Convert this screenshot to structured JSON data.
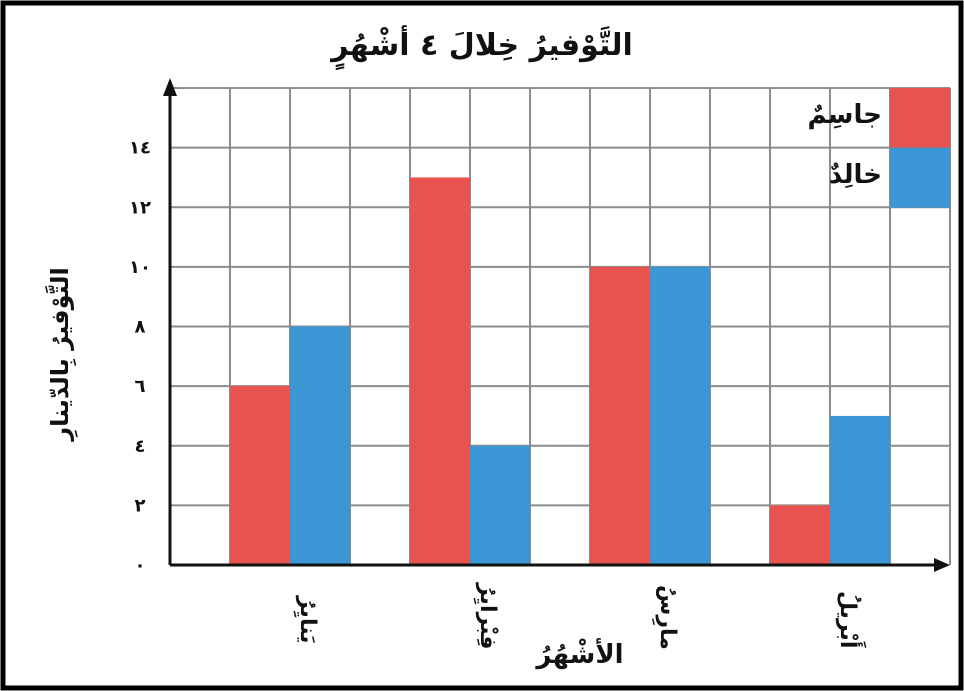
{
  "chart_data": {
    "type": "bar",
    "title": "التَّوْفيرُ خِلالَ ٤ أشْهُرٍ",
    "xlabel": "الأشْهُرُ",
    "ylabel": "التَّوْفيرُ بِالدّينارِ",
    "categories": [
      "يَنايِرُ",
      "فِبْرايِرُ",
      "مارِسُ",
      "أَبْريلُ"
    ],
    "series": [
      {
        "name": "جاسِمٌ",
        "color": "#e8524f",
        "values": [
          6,
          13,
          10,
          2
        ]
      },
      {
        "name": "خالِدٌ",
        "color": "#3a96d4",
        "values": [
          8,
          4,
          10,
          5
        ]
      }
    ],
    "ylim": [
      0,
      16
    ],
    "yticks": [
      0,
      2,
      4,
      6,
      8,
      10,
      12,
      14
    ],
    "ytick_labels": [
      "٠",
      "٢",
      "٤",
      "٦",
      "٨",
      "١٠",
      "١٢",
      "١٤"
    ],
    "grid": true,
    "legend_position": "top-right"
  }
}
